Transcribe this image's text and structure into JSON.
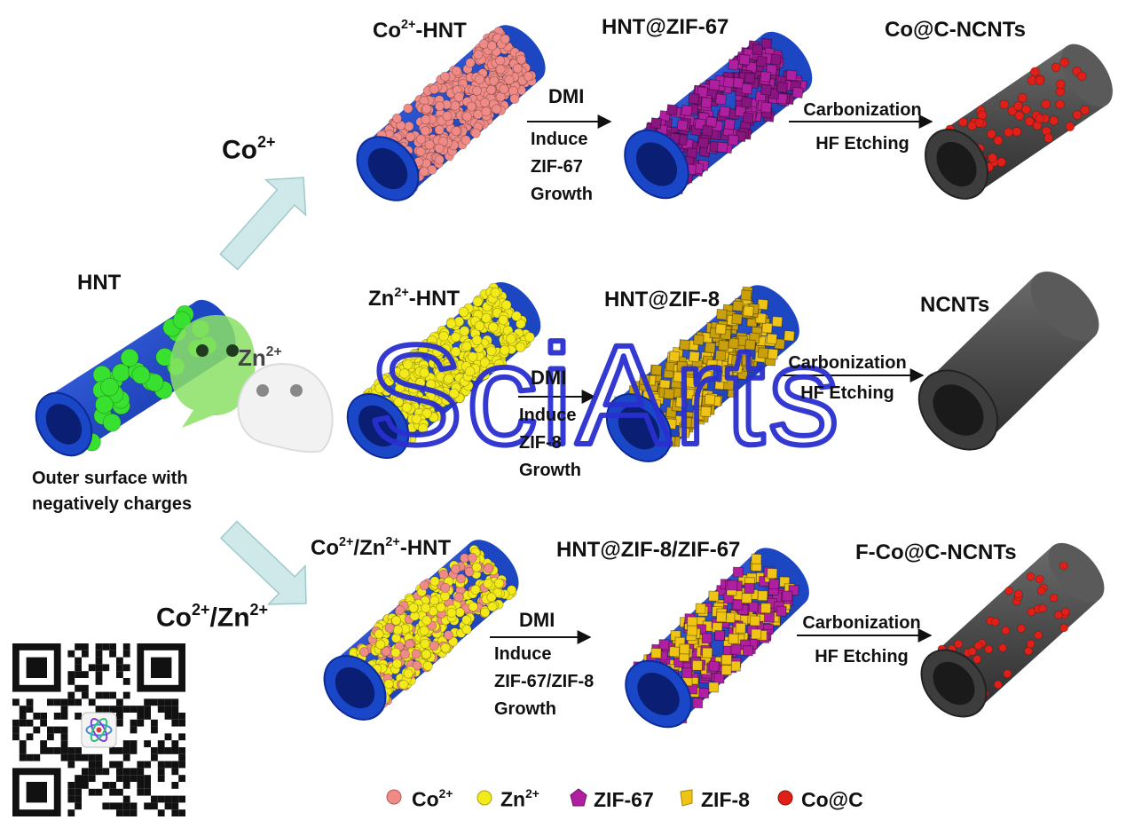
{
  "colors": {
    "core": "#1a47c8",
    "core_inner": "#0a1f73",
    "co_ion": "#ef8a86",
    "zn_ion": "#f2ea1a",
    "zif67": "#b01fa0",
    "zif8": "#f0c414",
    "co_c": "#e02018",
    "carbon": "#4b4b4b",
    "green_charge": "#38e030",
    "arrow_fill": "#cfe9ea",
    "watermark": "#2a2fd0"
  },
  "start": {
    "title": "HNT",
    "caption_line1": "Outer surface with",
    "caption_line2": "negatively charges"
  },
  "branches": {
    "top": {
      "ion_base": "Co",
      "ion_sup": "2+"
    },
    "middle": {
      "ion_base": "Zn",
      "ion_sup": "2+"
    },
    "bottom": {
      "ion1_base": "Co",
      "ion1_sup": "2+",
      "ion_sep": "/",
      "ion2_base": "Zn",
      "ion2_sup": "2+"
    }
  },
  "rows": {
    "top": {
      "stage1_base": "Co",
      "stage1_sup": "2+",
      "stage1_suffix": "-HNT",
      "stage2": "HNT@ZIF-67",
      "stage3": "Co@C-NCNTs",
      "step1_title": "DMI",
      "step1_lines": [
        "Induce",
        "ZIF-67",
        "Growth"
      ],
      "step2_lines": [
        "Carbonization",
        "HF Etching"
      ]
    },
    "middle": {
      "stage1_base": "Zn",
      "stage1_sup": "2+",
      "stage1_suffix": "-HNT",
      "stage2": "HNT@ZIF-8",
      "stage3": "NCNTs",
      "step1_title": "DMI",
      "step1_lines": [
        "Induce",
        "ZIF-8",
        "Growth"
      ],
      "step2_lines": [
        "Carbonization",
        "HF Etching"
      ]
    },
    "bottom": {
      "stage1_a_base": "Co",
      "stage1_a_sup": "2+",
      "stage1_sep": "/",
      "stage1_b_base": "Zn",
      "stage1_b_sup": "2+",
      "stage1_suffix": "-HNT",
      "stage2": "HNT@ZIF-8/ZIF-67",
      "stage3": "F-Co@C-NCNTs",
      "step1_title": "DMI",
      "step1_lines": [
        "Induce",
        "ZIF-67/ZIF-8",
        "Growth"
      ],
      "step2_lines": [
        "Carbonization",
        "HF Etching"
      ]
    }
  },
  "legend": {
    "co_base": "Co",
    "co_sup": "2+",
    "zn_base": "Zn",
    "zn_sup": "2+",
    "zif67": "ZIF-67",
    "zif8": "ZIF-8",
    "coc": "Co@C"
  },
  "watermark": {
    "text": "SciArts"
  }
}
